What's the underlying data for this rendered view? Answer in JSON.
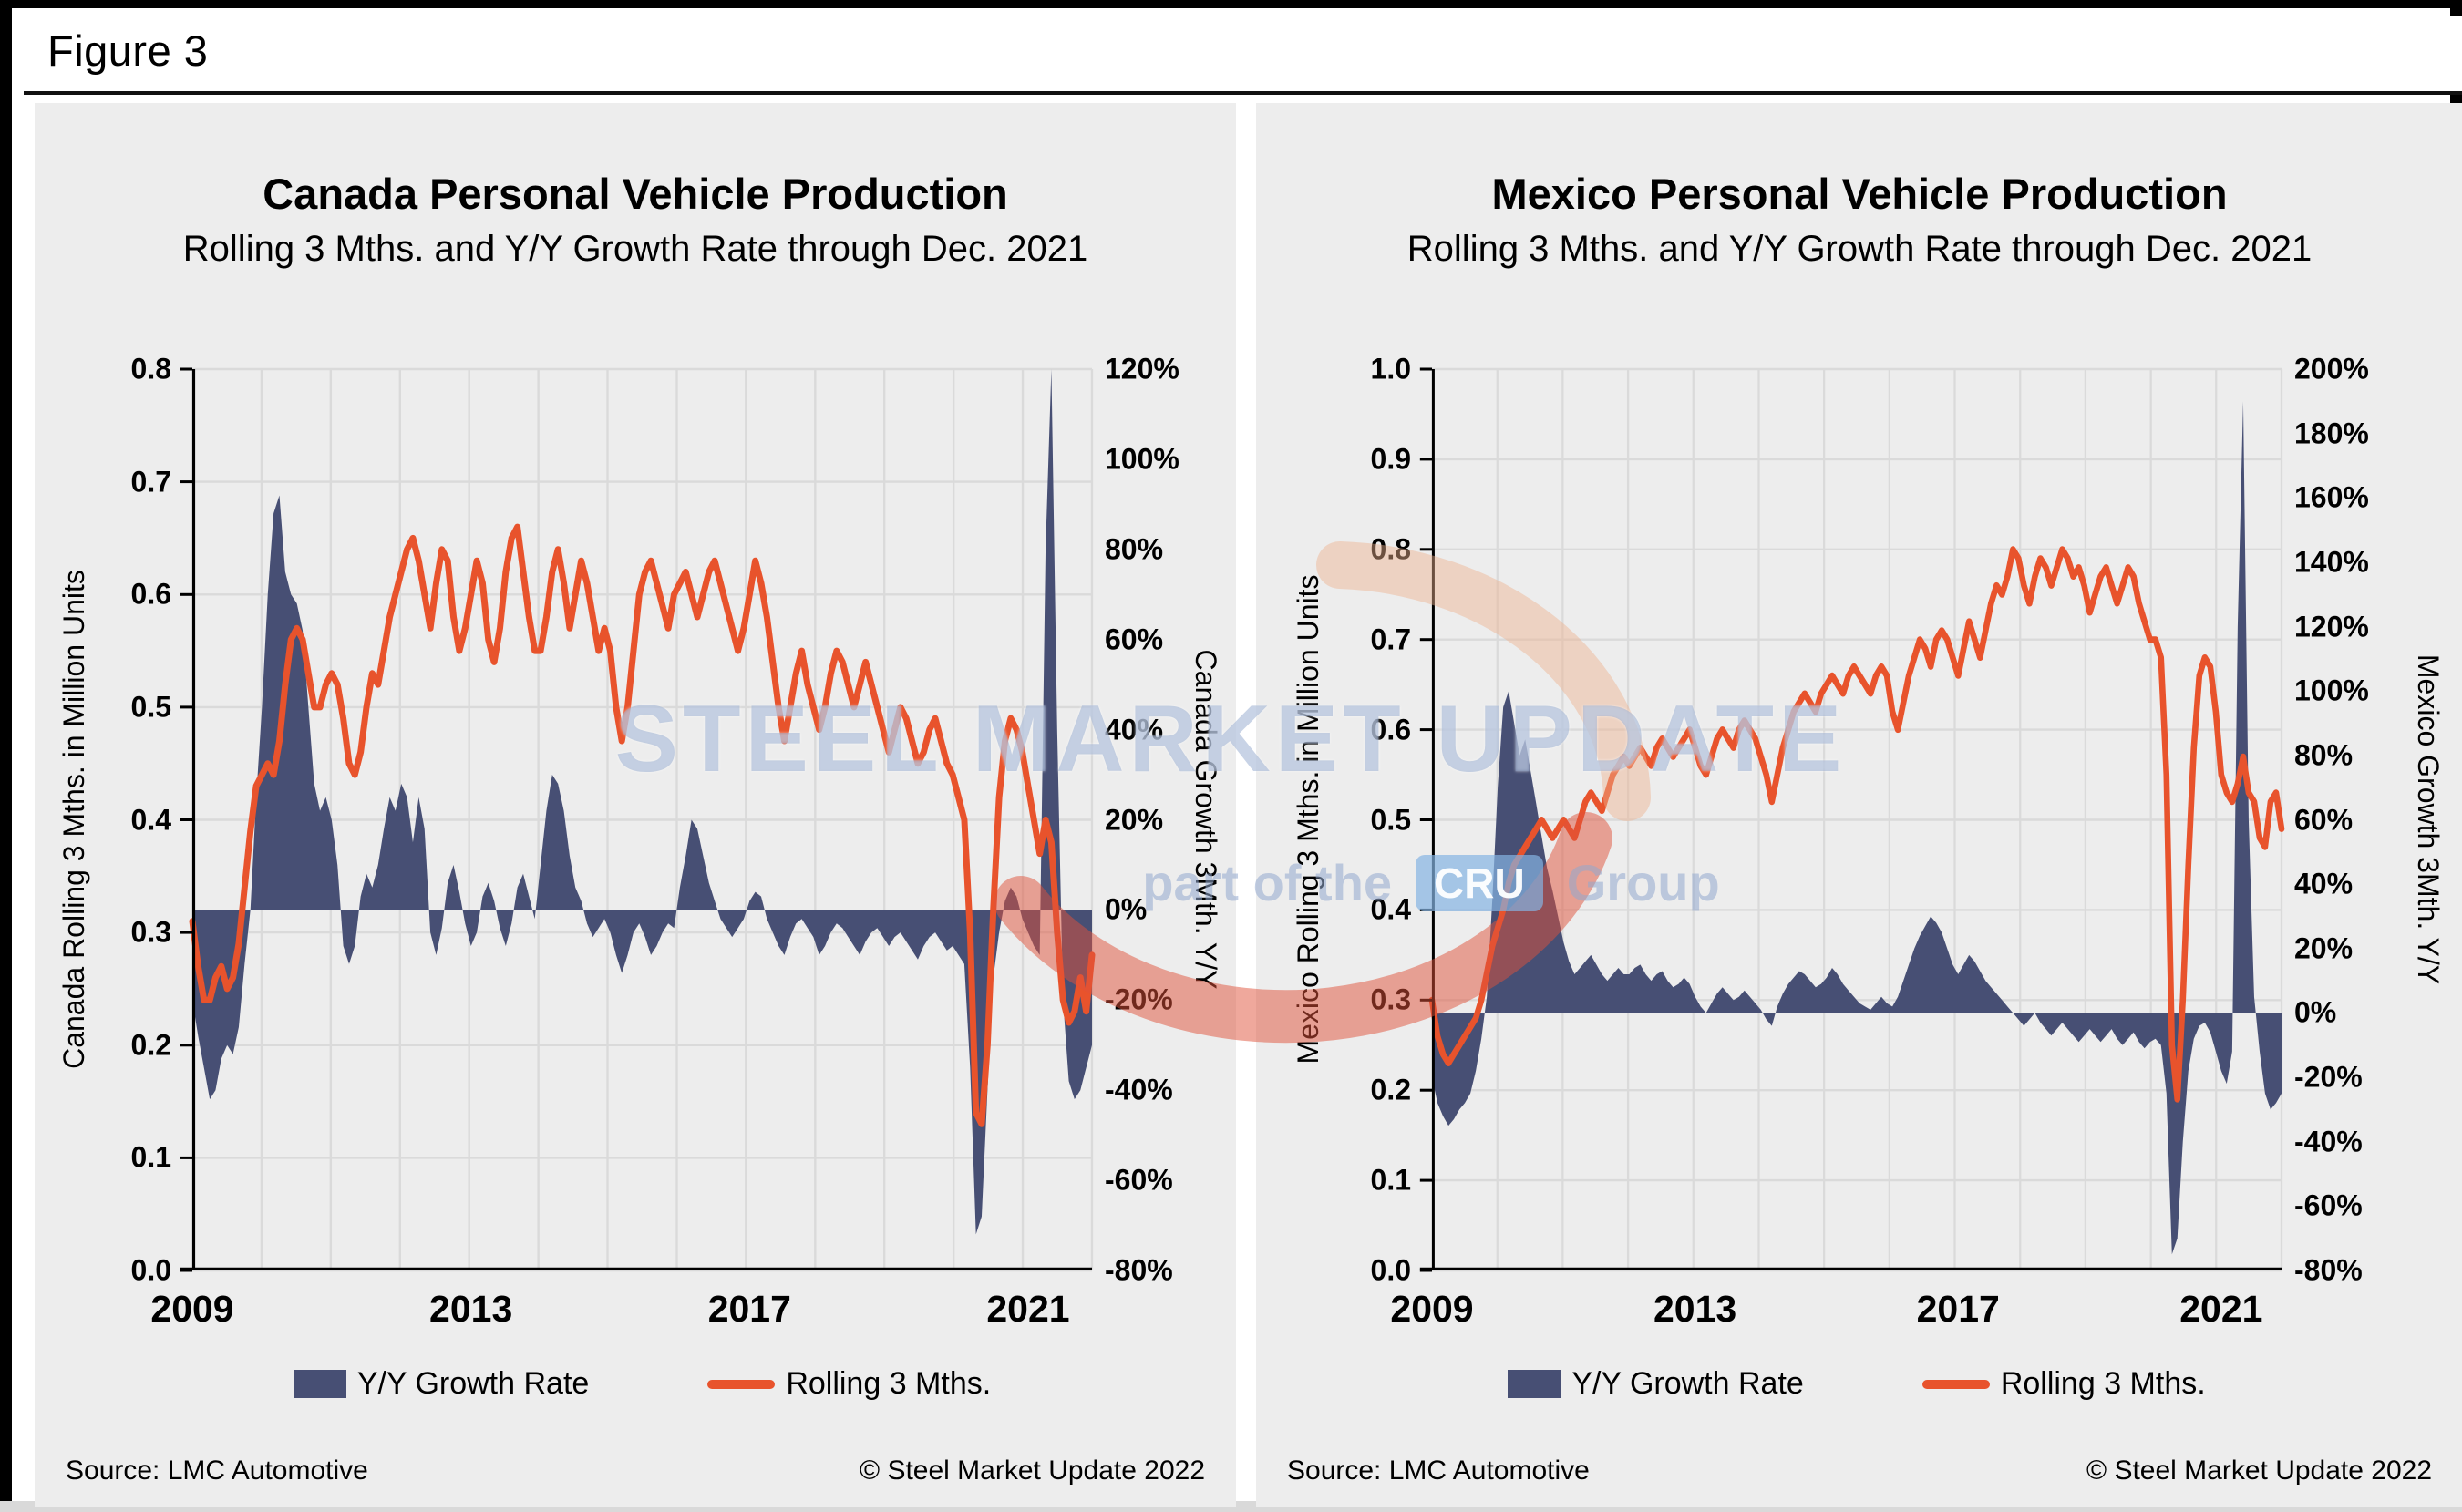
{
  "figure_label": "Figure 3",
  "watermark": {
    "line1": "STEEL MARKET UPDATE",
    "line2_prefix": "part of the",
    "line2_logo": "CRU",
    "line2_suffix": "Group"
  },
  "legend": {
    "bar_label": "Y/Y Growth Rate",
    "line_label": "Rolling 3 Mths."
  },
  "footer": {
    "source": "Source: LMC Automotive",
    "copyright": "© Steel Market Update 2022"
  },
  "colors": {
    "bar": "#474f74",
    "line": "#e8532c",
    "panel_bg": "#ededed",
    "grid": "#dadada",
    "axis": "#000000",
    "watermark_text": "#92a8cd",
    "watermark_swoosh_lower": "#e0523a",
    "watermark_swoosh_upper": "#edb28e",
    "watermark_cru_box": "#84b4e2"
  },
  "chart_data": [
    {
      "id": "canada",
      "type": "combo-area-line",
      "title": "Canada Personal Vehicle Production",
      "subtitle": "Rolling 3 Mths. and Y/Y Growth Rate through Dec. 2021",
      "x": {
        "start": "2009-01",
        "end": "2021-12",
        "freq": "monthly",
        "months": 156,
        "tick_labels": [
          "2009",
          "2013",
          "2017",
          "2021"
        ],
        "tick_month_index": [
          0,
          48,
          96,
          144
        ],
        "year_gridlines": true
      },
      "left_axis": {
        "title": "Canada Rolling 3 Mths. in Million Units",
        "min": 0,
        "max": 0.8,
        "ticks": [
          0.8,
          0.7,
          0.6,
          0.5,
          0.4,
          0.3,
          0.2,
          0.1,
          0.0
        ],
        "tick_labels": [
          "0.8",
          "0.7",
          "0.6",
          "0.5",
          "0.4",
          "0.3",
          "0.2",
          "0.1",
          "0.0"
        ]
      },
      "right_axis": {
        "title": "Canada Growth 3Mth. Y/Y",
        "min": -80,
        "max": 120,
        "ticks": [
          120,
          100,
          80,
          60,
          40,
          20,
          0,
          -20,
          -40,
          -60,
          -80
        ],
        "tick_labels": [
          "120%",
          "100%",
          "80%",
          "60%",
          "40%",
          "20%",
          "0%",
          "-20%",
          "-40%",
          "-60%",
          "-80%"
        ]
      },
      "series": [
        {
          "name": "Y/Y Growth Rate",
          "type": "area",
          "axis": "right",
          "unit": "percent",
          "values": [
            -20,
            -28,
            -35,
            -42,
            -40,
            -33,
            -30,
            -32,
            -26,
            -12,
            0,
            25,
            45,
            70,
            88,
            92,
            75,
            70,
            68,
            62,
            45,
            28,
            22,
            25,
            20,
            10,
            -8,
            -12,
            -8,
            3,
            8,
            5,
            10,
            18,
            25,
            22,
            28,
            25,
            15,
            25,
            18,
            -5,
            -10,
            -4,
            6,
            10,
            4,
            -3,
            -8,
            -5,
            3,
            6,
            2,
            -4,
            -8,
            -3,
            5,
            8,
            3,
            -2,
            10,
            22,
            30,
            28,
            22,
            12,
            5,
            2,
            -3,
            -6,
            -4,
            -2,
            -5,
            -10,
            -14,
            -10,
            -5,
            -3,
            -6,
            -10,
            -8,
            -5,
            -3,
            -4,
            5,
            12,
            20,
            18,
            12,
            6,
            2,
            -2,
            -4,
            -6,
            -4,
            -2,
            2,
            4,
            3,
            -2,
            -5,
            -8,
            -10,
            -6,
            -3,
            -2,
            -4,
            -6,
            -10,
            -8,
            -5,
            -3,
            -4,
            -6,
            -8,
            -10,
            -7,
            -5,
            -4,
            -6,
            -8,
            -6,
            -5,
            -7,
            -9,
            -11,
            -8,
            -6,
            -5,
            -7,
            -9,
            -8,
            -10,
            -12,
            -35,
            -72,
            -68,
            -40,
            -15,
            -5,
            2,
            5,
            3,
            -2,
            -5,
            -8,
            -10,
            80,
            120,
            40,
            -20,
            -38,
            -42,
            -40,
            -35,
            -30
          ]
        },
        {
          "name": "Rolling 3 Mths.",
          "type": "line",
          "axis": "left",
          "unit": "million units",
          "values": [
            0.31,
            0.27,
            0.24,
            0.24,
            0.26,
            0.27,
            0.25,
            0.26,
            0.29,
            0.34,
            0.39,
            0.43,
            0.44,
            0.45,
            0.44,
            0.47,
            0.52,
            0.56,
            0.57,
            0.56,
            0.53,
            0.5,
            0.5,
            0.52,
            0.53,
            0.52,
            0.49,
            0.45,
            0.44,
            0.46,
            0.5,
            0.53,
            0.52,
            0.55,
            0.58,
            0.6,
            0.62,
            0.64,
            0.65,
            0.63,
            0.6,
            0.57,
            0.61,
            0.64,
            0.63,
            0.58,
            0.55,
            0.57,
            0.6,
            0.63,
            0.61,
            0.56,
            0.54,
            0.57,
            0.62,
            0.65,
            0.66,
            0.62,
            0.58,
            0.55,
            0.55,
            0.58,
            0.62,
            0.64,
            0.61,
            0.57,
            0.6,
            0.63,
            0.61,
            0.58,
            0.55,
            0.57,
            0.55,
            0.5,
            0.47,
            0.5,
            0.55,
            0.6,
            0.62,
            0.63,
            0.61,
            0.59,
            0.57,
            0.6,
            0.61,
            0.62,
            0.6,
            0.58,
            0.6,
            0.62,
            0.63,
            0.61,
            0.59,
            0.57,
            0.55,
            0.57,
            0.6,
            0.63,
            0.61,
            0.58,
            0.54,
            0.5,
            0.47,
            0.5,
            0.53,
            0.55,
            0.52,
            0.5,
            0.48,
            0.5,
            0.53,
            0.55,
            0.54,
            0.52,
            0.5,
            0.52,
            0.54,
            0.52,
            0.5,
            0.48,
            0.46,
            0.48,
            0.5,
            0.49,
            0.47,
            0.45,
            0.46,
            0.48,
            0.49,
            0.47,
            0.45,
            0.44,
            0.42,
            0.4,
            0.3,
            0.14,
            0.13,
            0.2,
            0.32,
            0.42,
            0.47,
            0.49,
            0.48,
            0.46,
            0.43,
            0.4,
            0.37,
            0.4,
            0.38,
            0.3,
            0.24,
            0.22,
            0.23,
            0.26,
            0.23,
            0.28
          ]
        }
      ]
    },
    {
      "id": "mexico",
      "type": "combo-area-line",
      "title": "Mexico Personal Vehicle Production",
      "subtitle": "Rolling 3 Mths. and Y/Y Growth Rate through Dec. 2021",
      "x": {
        "start": "2009-01",
        "end": "2021-12",
        "freq": "monthly",
        "months": 156,
        "tick_labels": [
          "2009",
          "2013",
          "2017",
          "2021"
        ],
        "tick_month_index": [
          0,
          48,
          96,
          144
        ],
        "year_gridlines": true
      },
      "left_axis": {
        "title": "Mexico Rolling 3 Mths. in Million Units",
        "min": 0,
        "max": 1.0,
        "ticks": [
          1.0,
          0.9,
          0.8,
          0.7,
          0.6,
          0.5,
          0.4,
          0.3,
          0.2,
          0.1,
          0.0
        ],
        "tick_labels": [
          "1.0",
          "0.9",
          "0.8",
          "0.7",
          "0.6",
          "0.5",
          "0.4",
          "0.3",
          "0.2",
          "0.1",
          "0.0"
        ]
      },
      "right_axis": {
        "title": "Mexico Growth 3Mth. Y/Y",
        "min": -80,
        "max": 200,
        "ticks": [
          200,
          180,
          160,
          140,
          120,
          100,
          80,
          60,
          40,
          20,
          0,
          -20,
          -40,
          -60,
          -80
        ],
        "tick_labels": [
          "200%",
          "180%",
          "160%",
          "140%",
          "120%",
          "100%",
          "80%",
          "60%",
          "40%",
          "20%",
          "0%",
          "-20%",
          "-40%",
          "-60%",
          "-80%"
        ]
      },
      "series": [
        {
          "name": "Y/Y Growth Rate",
          "type": "area",
          "axis": "right",
          "unit": "percent",
          "values": [
            -20,
            -28,
            -32,
            -35,
            -33,
            -30,
            -28,
            -25,
            -18,
            -8,
            5,
            35,
            70,
            95,
            100,
            90,
            80,
            85,
            75,
            65,
            55,
            45,
            38,
            30,
            22,
            16,
            12,
            14,
            16,
            18,
            15,
            12,
            10,
            12,
            14,
            12,
            12,
            14,
            15,
            12,
            10,
            12,
            13,
            10,
            8,
            9,
            11,
            9,
            5,
            2,
            0,
            3,
            6,
            8,
            6,
            4,
            5,
            7,
            5,
            3,
            1,
            -2,
            -4,
            2,
            6,
            9,
            11,
            13,
            12,
            10,
            8,
            9,
            11,
            14,
            12,
            9,
            7,
            5,
            3,
            2,
            1,
            3,
            5,
            3,
            2,
            5,
            10,
            15,
            20,
            24,
            27,
            30,
            28,
            25,
            20,
            15,
            12,
            15,
            18,
            16,
            13,
            10,
            8,
            6,
            4,
            2,
            0,
            -2,
            -4,
            -2,
            0,
            -3,
            -5,
            -7,
            -5,
            -3,
            -5,
            -7,
            -9,
            -7,
            -5,
            -7,
            -9,
            -7,
            -5,
            -8,
            -10,
            -8,
            -6,
            -9,
            -11,
            -9,
            -8,
            -10,
            -25,
            -75,
            -70,
            -40,
            -18,
            -8,
            -4,
            -3,
            -6,
            -12,
            -18,
            -22,
            -12,
            120,
            190,
            60,
            5,
            -12,
            -25,
            -30,
            -28,
            -25
          ]
        },
        {
          "name": "Rolling 3 Mths.",
          "type": "line",
          "axis": "left",
          "unit": "million units",
          "values": [
            0.3,
            0.26,
            0.24,
            0.23,
            0.24,
            0.25,
            0.26,
            0.27,
            0.28,
            0.3,
            0.33,
            0.36,
            0.38,
            0.4,
            0.43,
            0.45,
            0.46,
            0.47,
            0.48,
            0.49,
            0.5,
            0.49,
            0.48,
            0.49,
            0.5,
            0.49,
            0.48,
            0.5,
            0.52,
            0.53,
            0.52,
            0.51,
            0.53,
            0.55,
            0.56,
            0.57,
            0.56,
            0.57,
            0.58,
            0.57,
            0.56,
            0.58,
            0.59,
            0.58,
            0.57,
            0.58,
            0.59,
            0.6,
            0.58,
            0.56,
            0.55,
            0.57,
            0.59,
            0.6,
            0.59,
            0.58,
            0.6,
            0.61,
            0.6,
            0.59,
            0.57,
            0.55,
            0.52,
            0.55,
            0.58,
            0.6,
            0.62,
            0.63,
            0.64,
            0.63,
            0.62,
            0.64,
            0.65,
            0.66,
            0.65,
            0.64,
            0.66,
            0.67,
            0.66,
            0.65,
            0.64,
            0.66,
            0.67,
            0.66,
            0.62,
            0.6,
            0.63,
            0.66,
            0.68,
            0.7,
            0.69,
            0.67,
            0.7,
            0.71,
            0.7,
            0.68,
            0.66,
            0.69,
            0.72,
            0.7,
            0.68,
            0.71,
            0.74,
            0.76,
            0.75,
            0.77,
            0.8,
            0.79,
            0.76,
            0.74,
            0.77,
            0.79,
            0.78,
            0.76,
            0.78,
            0.8,
            0.79,
            0.77,
            0.78,
            0.76,
            0.73,
            0.75,
            0.77,
            0.78,
            0.76,
            0.74,
            0.76,
            0.78,
            0.77,
            0.74,
            0.72,
            0.7,
            0.7,
            0.68,
            0.55,
            0.25,
            0.19,
            0.3,
            0.45,
            0.58,
            0.66,
            0.68,
            0.67,
            0.62,
            0.55,
            0.53,
            0.52,
            0.54,
            0.57,
            0.53,
            0.52,
            0.48,
            0.47,
            0.52,
            0.53,
            0.49
          ]
        }
      ]
    }
  ]
}
